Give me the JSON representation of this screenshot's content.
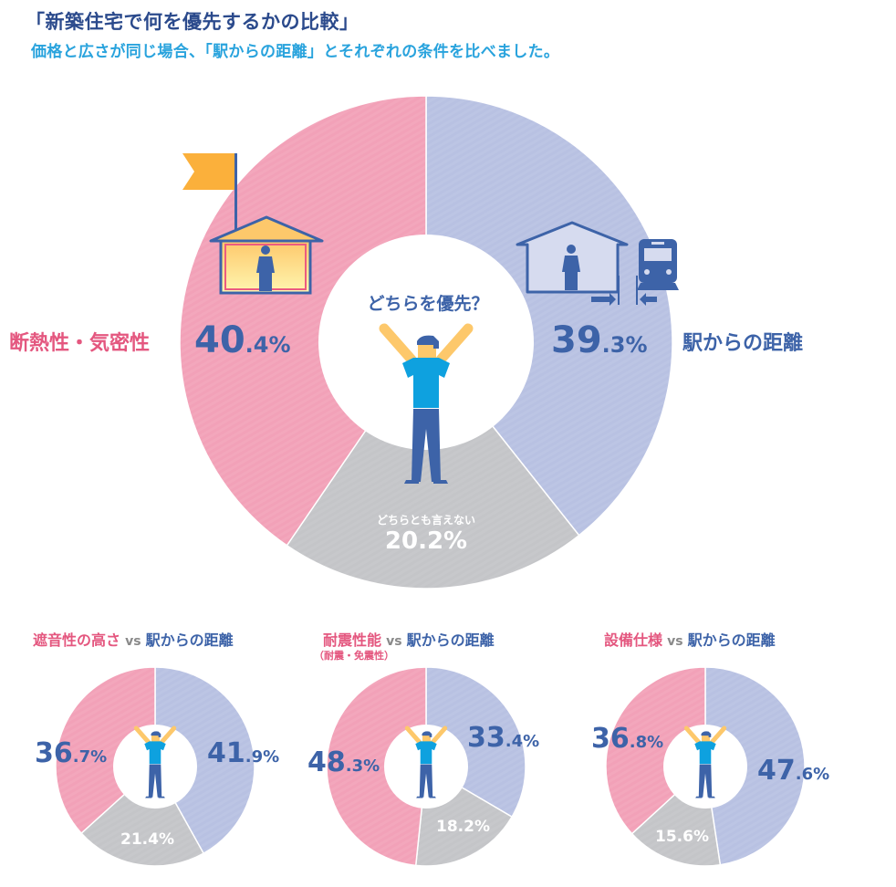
{
  "header": {
    "title": "「新築住宅で何を優先するかの比較」",
    "subtitle": "価格と広さが同じ場合、「駅からの距離」とそれぞれの条件を比べました。"
  },
  "colors": {
    "pink": "#f2a1b8",
    "blue": "#b8c1e2",
    "gray": "#c4c5c8",
    "text_blue": "#3d63a8",
    "text_pink": "#e4577f",
    "flag": "#fbb03b",
    "shirt": "#0ea1df",
    "skin": "#fdc86b"
  },
  "main": {
    "center_question": "どちらを優先？",
    "left_label": "断熱性・気密性",
    "right_label": "駅からの距離",
    "neutral_label": "どちらとも言えない",
    "left_pct_int": "40",
    "left_pct_dec": ".4%",
    "right_pct_int": "39",
    "right_pct_dec": ".3%",
    "neutral_pct": "20.2%"
  },
  "small": [
    {
      "title_pink": "遮音性の高さ",
      "vs": "vs",
      "title_blue": "駅からの距離",
      "note": "",
      "left_int": "36",
      "left_dec": ".7%",
      "right_int": "41",
      "right_dec": ".9%",
      "neutral": "21.4%"
    },
    {
      "title_pink": "耐震性能",
      "vs": "vs",
      "title_blue": "駅からの距離",
      "note": "（耐震・免震性）",
      "left_int": "48",
      "left_dec": ".3%",
      "right_int": "33",
      "right_dec": ".4%",
      "neutral": "18.2%"
    },
    {
      "title_pink": "設備仕様",
      "vs": "vs",
      "title_blue": "駅からの距離",
      "note": "",
      "left_int": "36",
      "left_dec": ".8%",
      "right_int": "47",
      "right_dec": ".6%",
      "neutral": "15.6%"
    }
  ],
  "chart_data": [
    {
      "type": "pie",
      "title": "新築住宅で何を優先するかの比較 — 断熱性・気密性 vs 駅からの距離",
      "categories": [
        "駅からの距離",
        "どちらとも言えない",
        "断熱性・気密性"
      ],
      "values": [
        39.3,
        20.2,
        40.4
      ],
      "colors": [
        "#b8c1e2",
        "#c4c5c8",
        "#f2a1b8"
      ],
      "donut": true,
      "center_text": "どちらを優先？"
    },
    {
      "type": "pie",
      "title": "遮音性の高さ vs 駅からの距離",
      "categories": [
        "駅からの距離",
        "どちらとも言えない",
        "遮音性の高さ"
      ],
      "values": [
        41.9,
        21.4,
        36.7
      ],
      "colors": [
        "#b8c1e2",
        "#c4c5c8",
        "#f2a1b8"
      ],
      "donut": true
    },
    {
      "type": "pie",
      "title": "耐震性能（耐震・免震性） vs 駅からの距離",
      "categories": [
        "駅からの距離",
        "どちらとも言えない",
        "耐震性能"
      ],
      "values": [
        33.4,
        18.2,
        48.3
      ],
      "colors": [
        "#b8c1e2",
        "#c4c5c8",
        "#f2a1b8"
      ],
      "donut": true
    },
    {
      "type": "pie",
      "title": "設備仕様 vs 駅からの距離",
      "categories": [
        "駅からの距離",
        "どちらとも言えない",
        "設備仕様"
      ],
      "values": [
        47.6,
        15.6,
        36.8
      ],
      "colors": [
        "#b8c1e2",
        "#c4c5c8",
        "#f2a1b8"
      ],
      "donut": true
    }
  ]
}
